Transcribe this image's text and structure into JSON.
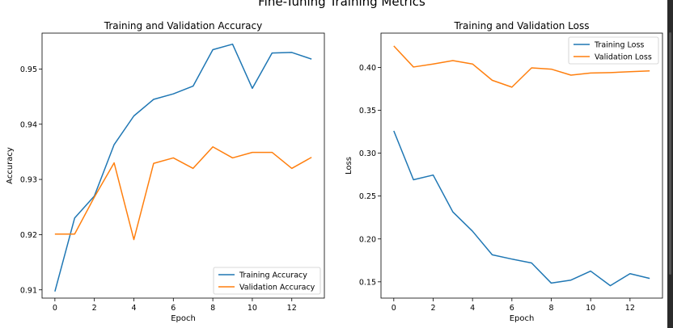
{
  "suptitle": "Fine-Tuning Training Metrics",
  "chart_data": [
    {
      "type": "line",
      "title": "Training and Validation Accuracy",
      "xlabel": "Epoch",
      "ylabel": "Accuracy",
      "x": [
        0,
        1,
        2,
        3,
        4,
        5,
        6,
        7,
        8,
        9,
        10,
        11,
        12,
        13
      ],
      "xticks": [
        0,
        2,
        4,
        6,
        8,
        10,
        12
      ],
      "yticks": [
        0.91,
        0.92,
        0.93,
        0.94,
        0.95
      ],
      "ytick_decimals": 2,
      "xlim": [
        -0.65,
        13.65
      ],
      "ylim": [
        0.9085,
        0.9565
      ],
      "legend_position": "lower-right",
      "grid": false,
      "series": [
        {
          "name": "Training Accuracy",
          "color": "#1f77b4",
          "values": [
            0.9097,
            0.923,
            0.927,
            0.9363,
            0.9415,
            0.9445,
            0.9455,
            0.9469,
            0.9535,
            0.9545,
            0.9465,
            0.9529,
            0.953,
            0.9518
          ]
        },
        {
          "name": "Validation Accuracy",
          "color": "#ff7f0e",
          "values": [
            0.9201,
            0.9201,
            0.9268,
            0.933,
            0.9191,
            0.9329,
            0.9339,
            0.932,
            0.9359,
            0.9339,
            0.9349,
            0.9349,
            0.932,
            0.934
          ]
        }
      ]
    },
    {
      "type": "line",
      "title": "Training and Validation Loss",
      "xlabel": "Epoch",
      "ylabel": "Loss",
      "x": [
        0,
        1,
        2,
        3,
        4,
        5,
        6,
        7,
        8,
        9,
        10,
        11,
        12,
        13
      ],
      "xticks": [
        0,
        2,
        4,
        6,
        8,
        10,
        12
      ],
      "yticks": [
        0.15,
        0.2,
        0.25,
        0.3,
        0.35,
        0.4
      ],
      "ytick_decimals": 2,
      "xlim": [
        -0.65,
        13.65
      ],
      "ylim": [
        0.131,
        0.44
      ],
      "legend_position": "upper-right",
      "grid": false,
      "series": [
        {
          "name": "Training Loss",
          "color": "#1f77b4",
          "values": [
            0.326,
            0.269,
            0.2745,
            0.2315,
            0.209,
            0.1815,
            0.1765,
            0.172,
            0.1485,
            0.152,
            0.1625,
            0.1455,
            0.1595,
            0.154
          ]
        },
        {
          "name": "Validation Loss",
          "color": "#ff7f0e",
          "values": [
            0.425,
            0.4005,
            0.404,
            0.408,
            0.404,
            0.385,
            0.377,
            0.3995,
            0.398,
            0.391,
            0.3935,
            0.394,
            0.395,
            0.396
          ]
        }
      ]
    }
  ]
}
